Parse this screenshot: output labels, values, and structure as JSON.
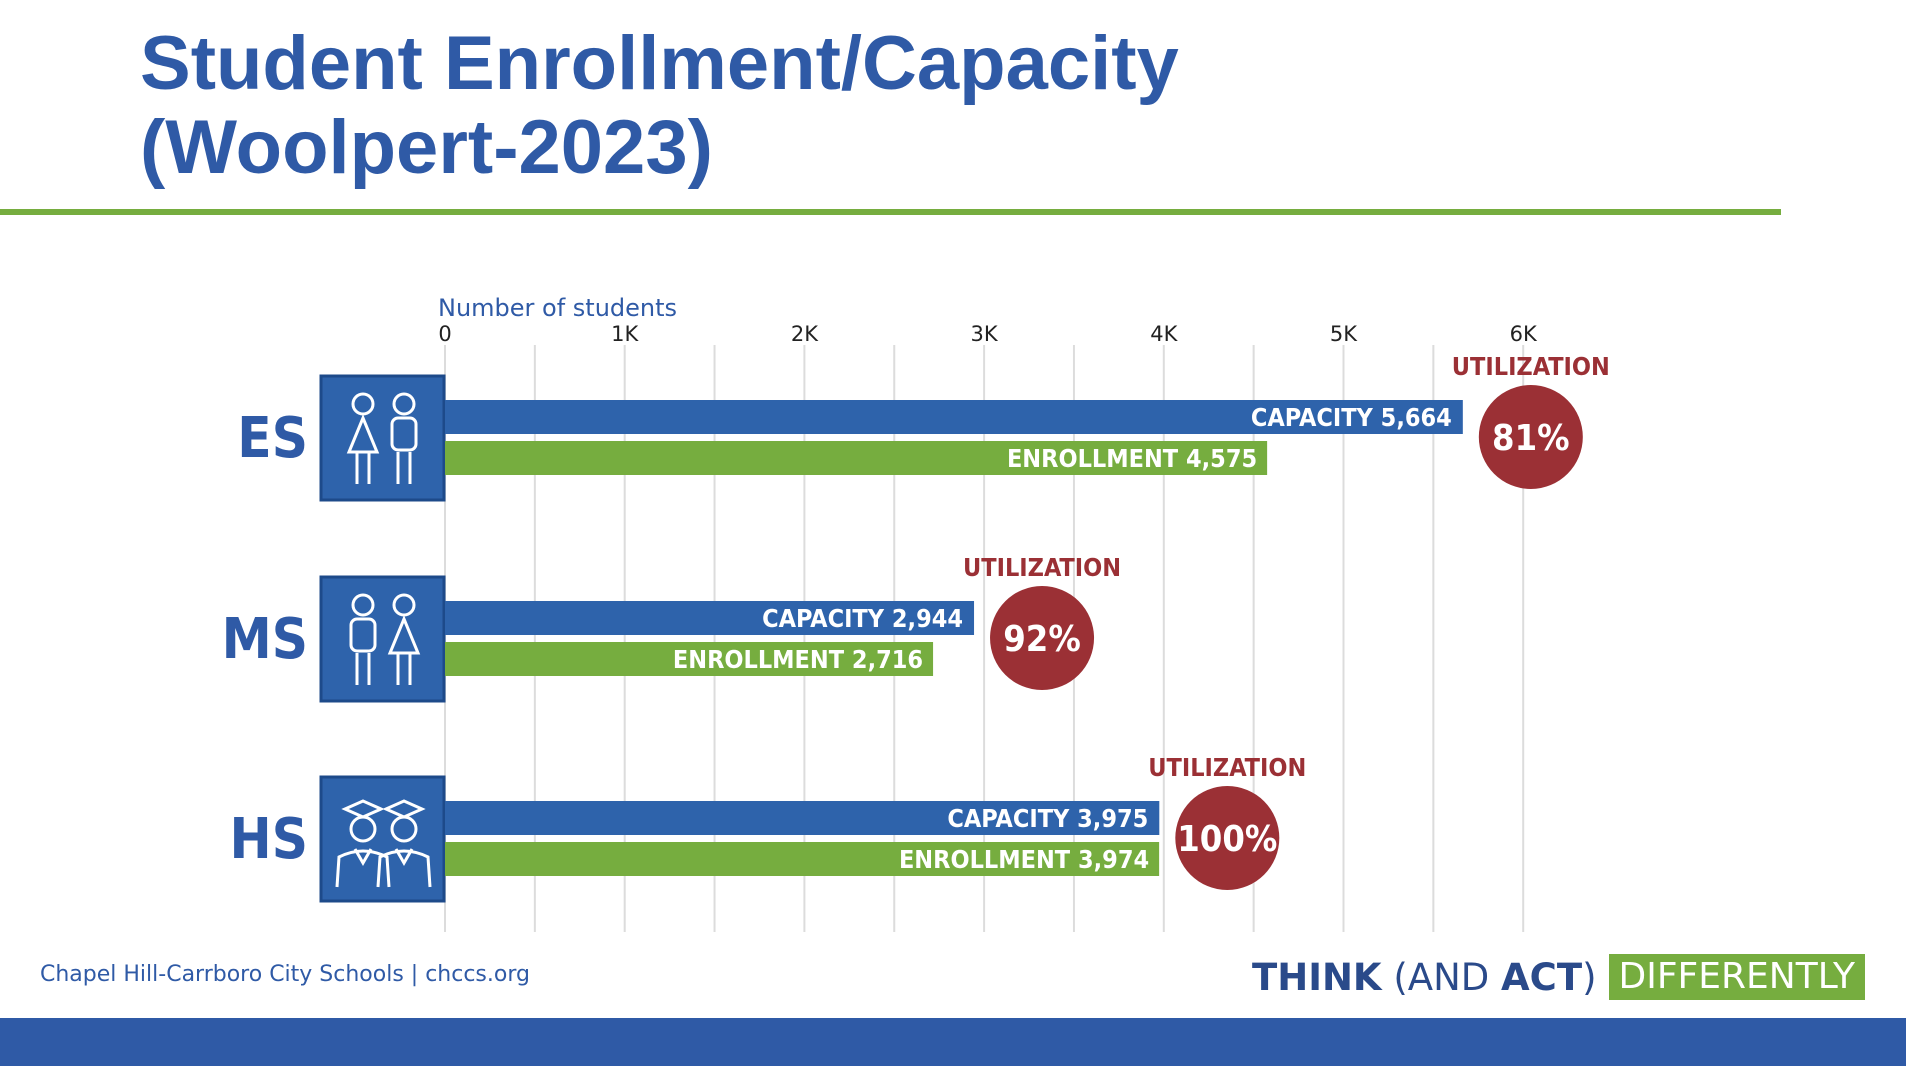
{
  "slide": {
    "title_line1": "Student Enrollment/Capacity",
    "title_line2": "(Woolpert-2023)",
    "footer": "Chapel Hill-Carrboro City Schools  |  chccs.org",
    "tagline": {
      "think": "THINK",
      "open": " (AND ",
      "act": "ACT",
      "close": ")",
      "differently": "DIFFERENTLY"
    }
  },
  "colors": {
    "title": "#2f5aa6",
    "capacity": "#2e63ab",
    "enrollment": "#76ad3f",
    "utilization": "#9b3035",
    "icon_bg": "#2e63ab"
  },
  "chart_data": {
    "type": "bar",
    "orientation": "horizontal",
    "axis_title": "Number of students",
    "xlim": [
      0,
      6000
    ],
    "ticks": [
      0,
      1000,
      2000,
      3000,
      4000,
      5000,
      6000
    ],
    "tick_labels": [
      "0",
      "1K",
      "2K",
      "3K",
      "4K",
      "5K",
      "6K"
    ],
    "grid": true,
    "axis_position": "top",
    "categories": [
      "ES",
      "MS",
      "HS"
    ],
    "series": [
      {
        "name": "CAPACITY",
        "values": [
          5664,
          2944,
          3975
        ]
      },
      {
        "name": "ENROLLMENT",
        "values": [
          4575,
          2716,
          3974
        ]
      }
    ],
    "bar_labels": {
      "capacity": [
        "CAPACITY 5,664",
        "CAPACITY 2,944",
        "CAPACITY 3,975"
      ],
      "enrollment": [
        "ENROLLMENT 4,575",
        "ENROLLMENT 2,716",
        "ENROLLMENT 3,974"
      ]
    },
    "utilization_label": "UTILIZATION",
    "utilization": [
      "81%",
      "92%",
      "100%"
    ],
    "icons": [
      "elementary-students-icon",
      "middle-students-icon",
      "graduate-students-icon"
    ]
  }
}
